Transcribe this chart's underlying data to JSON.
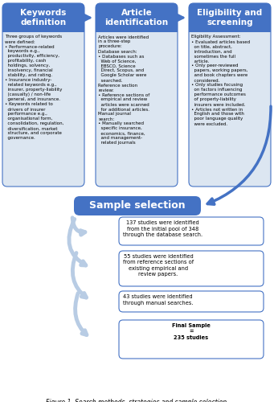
{
  "title": "Figure 1. Search methods, strategies and sample selection.",
  "bg_color": "#ffffff",
  "box_header_color": "#4472c4",
  "box_body_color": "#dce6f1",
  "box_body_stroke": "#4472c4",
  "sample_box_color": "#4472c4",
  "result_box_color": "#ffffff",
  "result_box_stroke": "#4472c4",
  "arrow_color": "#4472c4",
  "spiral_color": "#b8cce4",
  "header_text_color": "#ffffff",
  "body_text_color": "#000000",
  "headers": [
    "Keywords\ndefinition",
    "Article\nidentification",
    "Eligibility and\nscreening"
  ],
  "kw_body": "Three groups of keywords\nwere defined:\n• Performance-related\n  keywords e.g.,\n  productivity, efficiency,\n  profitability, cash\n  holdings, solvency,\n  insolvency, financial\n  stability, and rating.\n• Insurance industry-\n  related keywords e.g.,\n  insurer, property-liability\n  (casualty) / non-life\n  general, and insurance.\n• Keywords related to\n  drivers of insurer\n  performance e.g.,\n  organisational form,\n  consolidation, regulation,\n  diversification, market\n  structure, and corporate\n  governance.",
  "art_body": "Articles were identified\nin a three-step\nprocedure:\nDatabase search:\n• Databases such as\n  Web of Science,\n  EBSCO, Science\n  Direct, Scopus, and\n  Google Scholar were\n  searched.\nReference section\nreview:\n• Reference sections of\n  empirical and review\n  articles were scanned\n  for additional articles.\nManual journal\nsearch:\n• Manually searched\n  specific insurance,\n  economics, finance,\n  and management-\n  related journals",
  "elig_body": "Eligibility Assessment:\n• Evaluated articles based\n  on title, abstract,\n  introduction, and\n  sometimes the full\n  article.\n• Only peer-reviewed\n  papers, working papers,\n  and book chapters were\n  considered.\n• Only studies focusing\n  on factors influencing\n  performance outcomes\n  of property-liability\n  insurers were included.\n• Articles not written in\n  English and those with\n  poor language quality\n  were excluded.",
  "sample_label": "Sample selection",
  "results": [
    "137 studies were identified\nfrom the initial pool of 348\nthrough the database search.",
    "55 studies were identified\nfrom reference sections of\nexisting empirical and\nreview papers.",
    "43 studies were identified\nthrough manual searches.",
    "Final Sample\n=\n235 studies"
  ],
  "result_bold": [
    false,
    false,
    false,
    true
  ]
}
